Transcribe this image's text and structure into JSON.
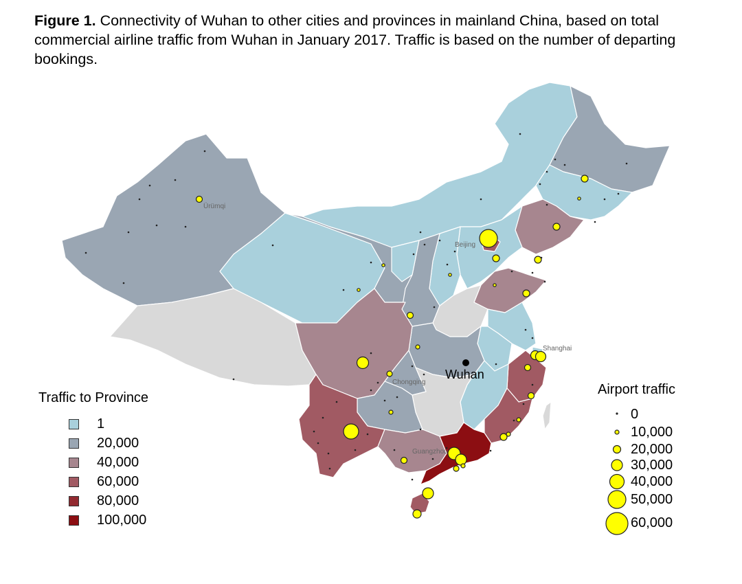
{
  "caption": {
    "figure_label": "Figure 1.",
    "text": " Connectivity of Wuhan to other cities and provinces in mainland China, based on total commercial airline traffic from Wuhan in January 2017. Traffic is based on the number of departing bookings."
  },
  "map": {
    "city_labels": {
      "wuhan": "Wuhan",
      "urumqi": "Ürümqi",
      "beijing": "Beijing",
      "shanghai": "Shanghai",
      "chongqing": "Chongqing",
      "guangzhou": "Guangzhou"
    },
    "colors": {
      "level_1": "#a9d0dc",
      "level_20000": "#9aa6b3",
      "level_40000": "#a7868f",
      "level_60000": "#a15a63",
      "level_80000": "#922a30",
      "level_100000": "#8c0e12",
      "no_data": "#d9d9d9",
      "airport": "#ffff00",
      "border": "#ffffff"
    }
  },
  "province_legend": {
    "title": "Traffic to Province",
    "items": [
      {
        "label": "1",
        "color": "#a9d0dc"
      },
      {
        "label": "20,000",
        "color": "#9aa6b3"
      },
      {
        "label": "40,000",
        "color": "#a7868f"
      },
      {
        "label": "60,000",
        "color": "#a15a63"
      },
      {
        "label": "80,000",
        "color": "#922a30"
      },
      {
        "label": "100,000",
        "color": "#8c0e12"
      }
    ]
  },
  "airport_legend": {
    "title": "Airport traffic",
    "items": [
      {
        "label": "0",
        "value": 0
      },
      {
        "label": "10,000",
        "value": 10000
      },
      {
        "label": "20,000",
        "value": 20000
      },
      {
        "label": "30,000",
        "value": 30000
      },
      {
        "label": "40,000",
        "value": 40000
      },
      {
        "label": "50,000",
        "value": 50000
      },
      {
        "label": "60,000",
        "value": 60000
      }
    ]
  }
}
